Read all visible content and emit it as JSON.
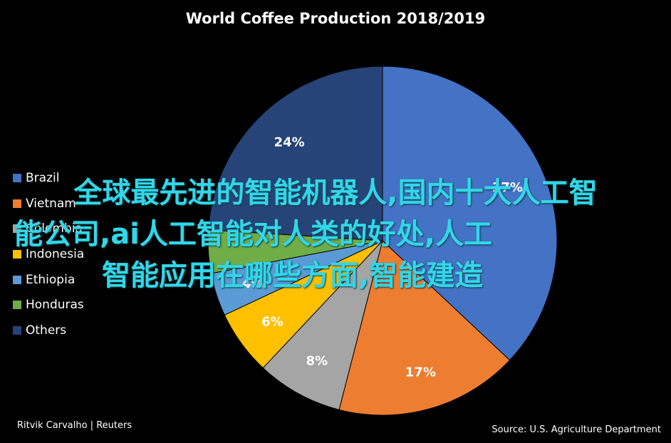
{
  "chart_data": {
    "type": "pie",
    "title": "World Coffee Production 2018/2019",
    "categories": [
      "Brazil",
      "Vietnam",
      "Colombia",
      "Indonesia",
      "Ethiopia",
      "Honduras",
      "Others"
    ],
    "values": [
      37,
      17,
      8,
      6,
      4,
      4,
      24
    ],
    "data_labels": [
      "37%",
      "17%",
      "8%",
      "6%",
      "4%",
      "",
      "24%"
    ],
    "colors": [
      "#4472c4",
      "#ed7d31",
      "#a5a5a5",
      "#ffc000",
      "#5b9bd5",
      "#70ad47",
      "#264478"
    ],
    "legend_position": "left"
  },
  "overlay_text": {
    "line1": "全球最先进的智能机器人,国内十大人工智",
    "line2": "能公司,ai人工智能对人类的好处,人工",
    "line3": "智能应用在哪些方面,智能建造"
  },
  "footer": {
    "credit": "Ritvik Carvalho | Reuters",
    "source": "Source: U.S. Agriculture Department"
  }
}
